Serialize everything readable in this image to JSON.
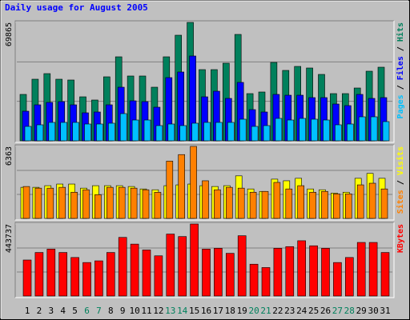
{
  "chart_data": {
    "type": "bar",
    "title": "Daily usage for August 2005",
    "legend_separator": " / ",
    "categories": [
      "1",
      "2",
      "3",
      "4",
      "5",
      "6",
      "7",
      "8",
      "9",
      "10",
      "11",
      "12",
      "13",
      "14",
      "15",
      "16",
      "17",
      "18",
      "19",
      "20",
      "21",
      "22",
      "23",
      "24",
      "25",
      "26",
      "27",
      "28",
      "29",
      "30",
      "31"
    ],
    "category_colors": [
      "#000000",
      "#000000",
      "#000000",
      "#000000",
      "#000000",
      "#00805c",
      "#00805c",
      "#000000",
      "#000000",
      "#000000",
      "#000000",
      "#000000",
      "#00805c",
      "#00805c",
      "#000000",
      "#000000",
      "#000000",
      "#000000",
      "#000000",
      "#00805c",
      "#00805c",
      "#000000",
      "#000000",
      "#000000",
      "#000000",
      "#000000",
      "#00805c",
      "#00805c",
      "#000000",
      "#000000",
      "#000000"
    ],
    "panels": [
      {
        "ylim": [
          0,
          69865
        ],
        "yticks": [
          69865
        ],
        "series": [
          {
            "name": "Hits",
            "color": "#00805c",
            "values": [
              27380,
              36350,
              39650,
              36350,
              35880,
              25960,
              24075,
              37765,
              49565,
              38240,
              38240,
              31630,
              49565,
              62310,
              69865,
              42010,
              42010,
              45790,
              62780,
              27850,
              28800,
              46260,
              41540,
              43900,
              42960,
              39180,
              27850,
              27850,
              31155,
              41070,
              43430
            ]
          },
          {
            "name": "Files",
            "color": "#0000ff",
            "values": [
              17470,
              21240,
              22660,
              23130,
              21240,
              16520,
              17000,
              21240,
              31630,
              23600,
              23130,
              19830,
              37290,
              40600,
              50040,
              25960,
              29270,
              25020,
              34460,
              18410,
              17000,
              27380,
              26900,
              26900,
              25490,
              25490,
              21715,
              20770,
              27380,
              25020,
              25490
            ]
          },
          {
            "name": "Pages",
            "color": "#00c0ff",
            "values": [
              8500,
              9440,
              10860,
              10860,
              10860,
              9910,
              9910,
              10385,
              16050,
              12270,
              12270,
              8970,
              9910,
              8970,
              10385,
              10860,
              10860,
              10860,
              12750,
              8500,
              8970,
              13220,
              12270,
              13220,
              12750,
              12270,
              9440,
              9910,
              14160,
              14160,
              11330
            ]
          }
        ]
      },
      {
        "ylim": [
          0,
          6363
        ],
        "yticks": [
          6363
        ],
        "series": [
          {
            "name": "Visits",
            "color": "#ffff00",
            "values": [
              2748,
              2748,
              2892,
              3037,
              3037,
              2675,
              2892,
              2892,
              2892,
              2820,
              2603,
              2531,
              2892,
              2964,
              3037,
              2892,
              2820,
              2892,
              3760,
              2603,
              2386,
              3470,
              3326,
              3543,
              2603,
              2531,
              2241,
              2314,
              3543,
              3977,
              3543
            ]
          },
          {
            "name": "Sites",
            "color": "#ff8000",
            "values": [
              2820,
              2675,
              2675,
              2748,
              2314,
              2531,
              2097,
              2748,
              2748,
              2675,
              2531,
              2314,
              5062,
              5640,
              6363,
              3326,
              2531,
              2748,
              2675,
              2314,
              2386,
              3181,
              2603,
              2892,
              2314,
              2386,
              2169,
              2169,
              2964,
              3109,
              2603
            ]
          }
        ]
      },
      {
        "ylim": [
          0,
          443737
        ],
        "yticks": [
          443737
        ],
        "series": [
          {
            "name": "KBytes",
            "color": "#ff0000",
            "values": [
              221900,
              268300,
              289000,
              268300,
              237400,
              206400,
              216700,
              268300,
              361200,
              319900,
              283800,
              247700,
              381800,
              366400,
              443737,
              289000,
              294100,
              263200,
              371500,
              196100,
              175400,
              294100,
              304400,
              340600,
              309600,
              294100,
              206400,
              237400,
              330200,
              330200,
              268300
            ]
          }
        ]
      }
    ]
  }
}
